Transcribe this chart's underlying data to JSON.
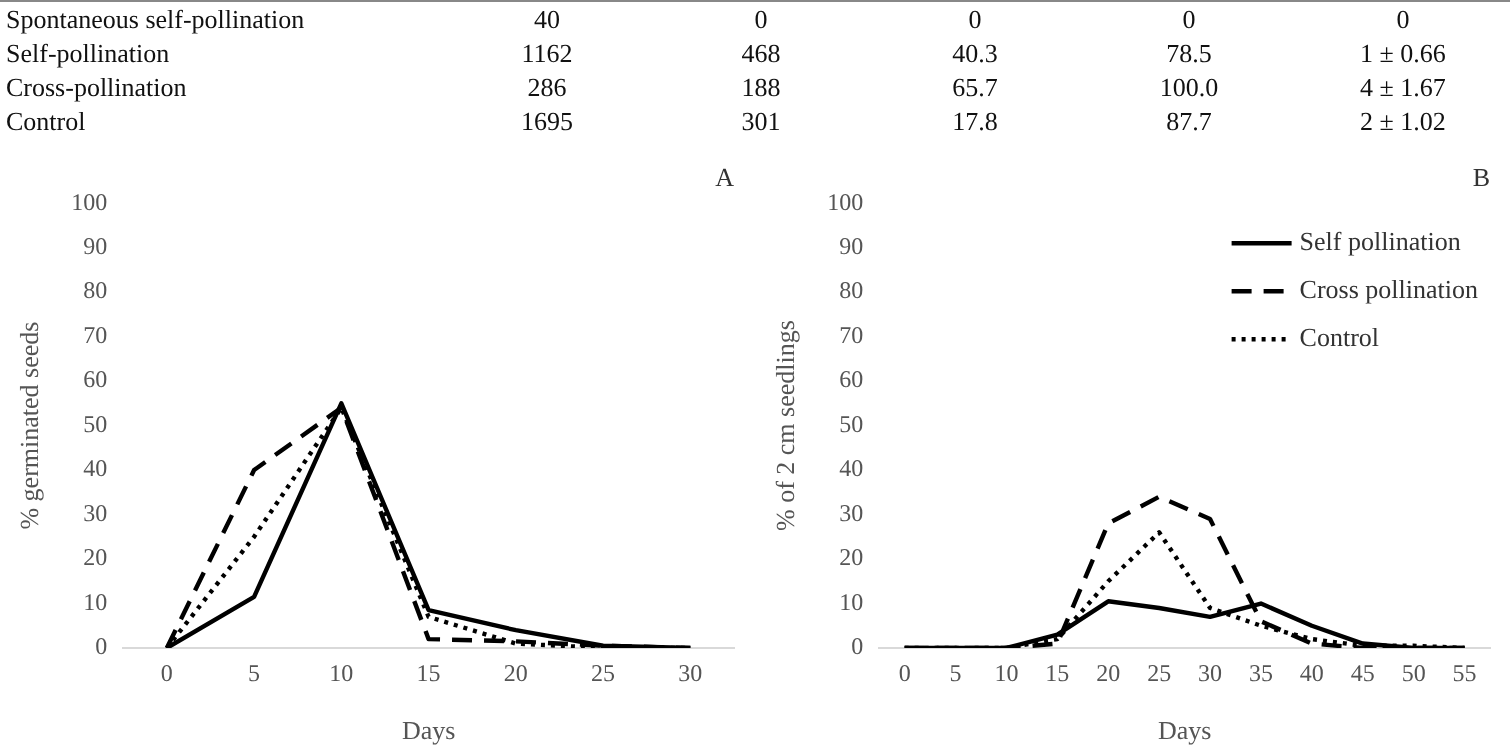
{
  "chart_data": [
    {
      "type": "other",
      "annotations": [
        "Spontaneous self-pollination",
        "40",
        "0",
        "0",
        "0",
        "0",
        "Self-pollination",
        "1162",
        "468",
        "40.3",
        "78.5",
        "1 ± 0.66",
        "Cross-pollination",
        "286",
        "188",
        "65.7",
        "100.0",
        "4 ± 1.67",
        "Control",
        "1695",
        "301",
        "17.8",
        "87.7",
        "2 ± 1.02"
      ]
    },
    {
      "type": "line",
      "title": "A",
      "xlabel": "Days",
      "ylabel": "% germinated seeds",
      "x": [
        0,
        5,
        10,
        15,
        20,
        25,
        30
      ],
      "xlim": [
        -2.5,
        32.5
      ],
      "xticks": [
        0,
        5,
        10,
        15,
        20,
        25,
        30
      ],
      "ylim": [
        0,
        100
      ],
      "yticks": [
        0,
        10,
        20,
        30,
        40,
        50,
        60,
        70,
        80,
        90,
        100
      ],
      "grid": false,
      "legend": false,
      "marker": "none",
      "series": [
        {
          "color": "#000000",
          "line_style": "solid",
          "values": [
            0,
            11.5,
            55,
            8.5,
            4,
            0.5,
            0
          ]
        },
        {
          "color": "#000000",
          "line_style": "dashed",
          "values": [
            0,
            40,
            54,
            2,
            1.5,
            0.5,
            0
          ]
        },
        {
          "color": "#000000",
          "line_style": "dotted",
          "values": [
            0,
            25,
            54,
            7,
            1,
            0,
            0
          ]
        }
      ]
    },
    {
      "type": "line",
      "title": "B",
      "xlabel": "Days",
      "ylabel": "% of 2 cm seedlings",
      "x": [
        0,
        5,
        10,
        15,
        20,
        25,
        30,
        35,
        40,
        45,
        50,
        55
      ],
      "xlim": [
        -2.5,
        57.5
      ],
      "xticks": [
        0,
        5,
        10,
        15,
        20,
        25,
        30,
        35,
        40,
        45,
        50,
        55
      ],
      "ylim": [
        0,
        100
      ],
      "yticks": [
        0,
        10,
        20,
        30,
        40,
        50,
        60,
        70,
        80,
        90,
        100
      ],
      "grid": false,
      "legend": "top right",
      "marker": "none",
      "series": [
        {
          "name": "Self pollination",
          "color": "#000000",
          "line_style": "solid",
          "values": [
            0,
            0,
            0,
            3,
            10.5,
            9,
            7,
            10,
            5,
            1,
            0,
            0
          ]
        },
        {
          "name": "Cross pollination",
          "color": "#000000",
          "line_style": "dashed",
          "values": [
            0,
            0,
            0,
            1,
            28,
            34,
            29,
            6,
            1,
            0,
            0,
            0
          ]
        },
        {
          "name": "Control",
          "color": "#000000",
          "line_style": "dotted",
          "values": [
            0,
            0,
            0,
            2,
            15,
            26,
            9,
            5,
            2,
            0.5,
            0.5,
            0
          ]
        }
      ]
    }
  ]
}
